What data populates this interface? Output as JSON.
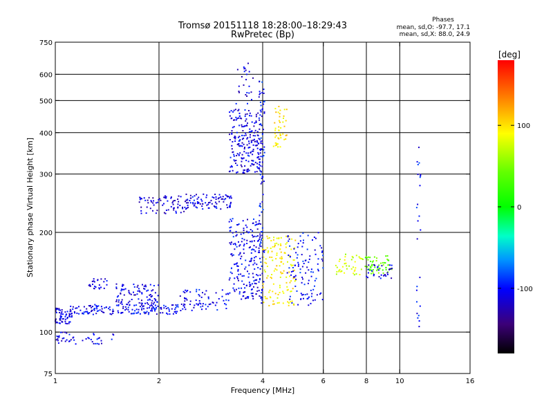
{
  "chart_data": {
    "type": "scatter",
    "title": "Tromsø 20151118 18:28:00–18:29:43",
    "subtitle": "RwPretec (Bp)",
    "xlabel": "Frequency [MHz]",
    "ylabel": "Stationary phase Virtual Height [km]",
    "x_scale": "log",
    "y_scale": "log",
    "xlim": [
      1,
      16
    ],
    "ylim": [
      75,
      750
    ],
    "x_ticks": [
      1,
      2,
      4,
      6,
      8,
      10,
      16
    ],
    "x_tick_labels": [
      "1",
      "2",
      "4",
      "6",
      "8",
      "10",
      "16"
    ],
    "x_grid": [
      2,
      4,
      6,
      8,
      10
    ],
    "y_ticks": [
      75,
      100,
      200,
      300,
      400,
      500,
      600,
      750
    ],
    "y_tick_labels": [
      "75",
      "100",
      "200",
      "300",
      "400",
      "500",
      "600",
      "750"
    ],
    "y_grid": [
      100,
      200,
      300,
      400,
      500,
      600
    ],
    "grid": true,
    "stats": {
      "title": "Phases",
      "o_line": "mean, sd,O: -97.7, 17.1",
      "x_line": "mean, sd,X:  88.0, 24.9"
    },
    "colorbar": {
      "label": "[deg]",
      "range": [
        -180,
        180
      ],
      "ticks": [
        100,
        0,
        -100
      ],
      "tick_labels": [
        "100",
        "0",
        "-100"
      ]
    },
    "point_clusters": [
      {
        "x": [
          1.0,
          1.12
        ],
        "y": [
          105,
          118
        ],
        "n": 60,
        "phase": -110
      },
      {
        "x": [
          1.0,
          1.15
        ],
        "y": [
          92,
          100
        ],
        "n": 25,
        "phase": -110
      },
      {
        "x": [
          1.2,
          1.5
        ],
        "y": [
          92,
          100
        ],
        "n": 20,
        "phase": -105
      },
      {
        "x": [
          1.25,
          1.42
        ],
        "y": [
          135,
          145
        ],
        "n": 25,
        "phase": -110
      },
      {
        "x": [
          1.1,
          2.3
        ],
        "y": [
          113,
          121
        ],
        "n": 160,
        "phase": -105
      },
      {
        "x": [
          1.5,
          2.0
        ],
        "y": [
          121,
          140
        ],
        "n": 90,
        "phase": -110
      },
      {
        "x": [
          2.3,
          3.2
        ],
        "y": [
          116,
          135
        ],
        "n": 70,
        "phase": -105
      },
      {
        "x": [
          1.75,
          2.4
        ],
        "y": [
          228,
          258
        ],
        "n": 70,
        "phase": -115
      },
      {
        "x": [
          2.4,
          3.25
        ],
        "y": [
          235,
          262
        ],
        "n": 90,
        "phase": -110
      },
      {
        "x": [
          3.2,
          4.0
        ],
        "y": [
          300,
          470
        ],
        "n": 230,
        "phase": -110
      },
      {
        "x": [
          3.2,
          4.0
        ],
        "y": [
          125,
          220
        ],
        "n": 210,
        "phase": -105
      },
      {
        "x": [
          3.35,
          3.75
        ],
        "y": [
          470,
          650
        ],
        "n": 25,
        "phase": -110
      },
      {
        "x": [
          3.9,
          4.05
        ],
        "y": [
          120,
          600
        ],
        "n": 80,
        "phase": -100
      },
      {
        "x": [
          4.0,
          5.0
        ],
        "y": [
          120,
          195
        ],
        "n": 140,
        "phase": 95
      },
      {
        "x": [
          4.3,
          4.7
        ],
        "y": [
          360,
          480
        ],
        "n": 45,
        "phase": 100
      },
      {
        "x": [
          4.7,
          6.0
        ],
        "y": [
          120,
          200
        ],
        "n": 110,
        "phase": -100
      },
      {
        "x": [
          6.5,
          7.8
        ],
        "y": [
          148,
          172
        ],
        "n": 40,
        "phase": 75
      },
      {
        "x": [
          7.8,
          9.5
        ],
        "y": [
          150,
          170
        ],
        "n": 55,
        "phase": 40
      },
      {
        "x": [
          8.0,
          9.5
        ],
        "y": [
          145,
          160
        ],
        "n": 30,
        "phase": -110
      },
      {
        "x": [
          11.2,
          11.5
        ],
        "y": [
          100,
          380
        ],
        "n": 25,
        "phase": -100
      }
    ]
  }
}
